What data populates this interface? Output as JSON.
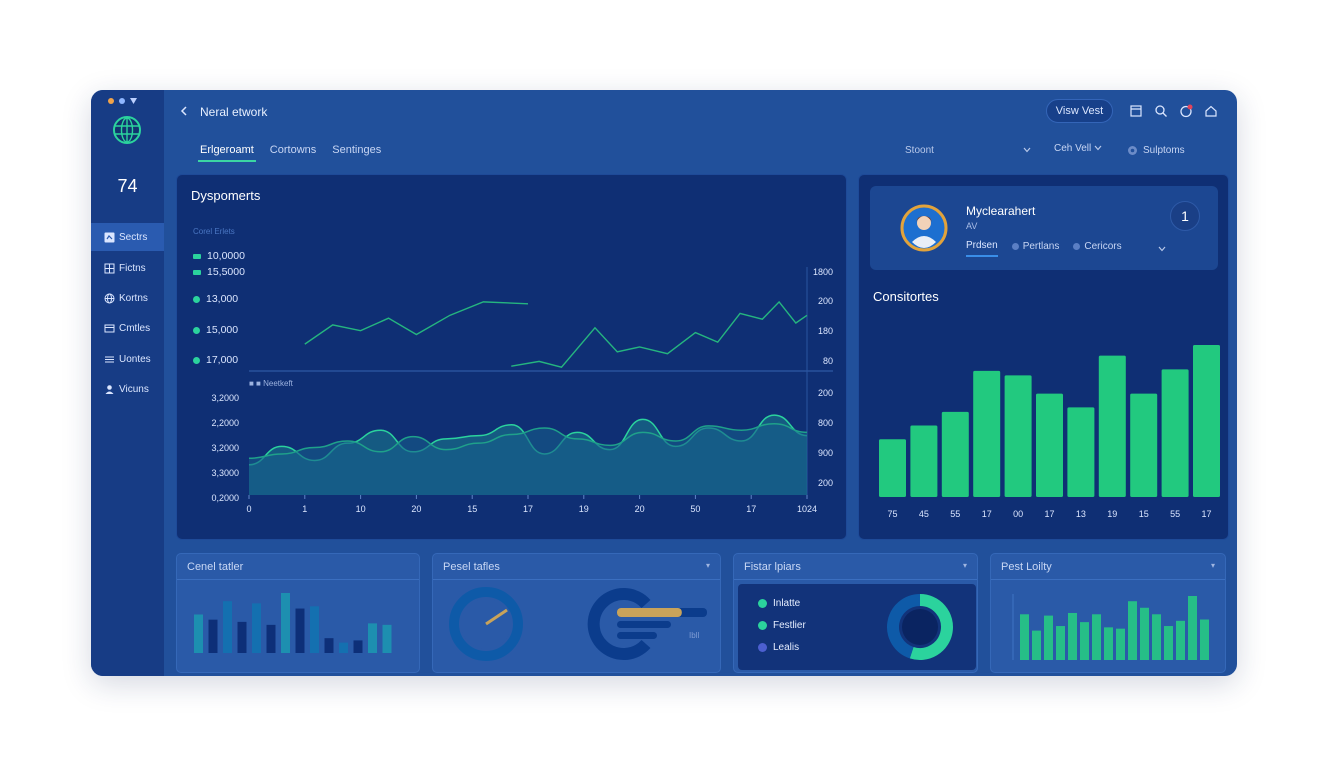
{
  "window": {
    "title": "Neral etwork",
    "view_button": "Visw Vest"
  },
  "icons": {
    "back": "chevron-left-icon",
    "calendar": "calendar-icon",
    "search": "search-icon",
    "notifications": "bell-badge-icon",
    "home": "home-icon",
    "logo": "globe-icon"
  },
  "colors": {
    "accent_green": "#2bd39d",
    "bg_window": "#21509b",
    "panel": "#0f2f74",
    "progress_gold": "#c9a35a"
  },
  "sidebar": {
    "count": "74",
    "items": [
      {
        "label": "Sectrs",
        "icon": "chart-icon"
      },
      {
        "label": "Fictns",
        "icon": "grid-icon"
      },
      {
        "label": "Kortns",
        "icon": "globe-icon"
      },
      {
        "label": "Cmtles",
        "icon": "folder-icon"
      },
      {
        "label": "Uontes",
        "icon": "list-icon"
      },
      {
        "label": "Vicuns",
        "icon": "user-icon"
      }
    ]
  },
  "tabs": [
    {
      "label": "Erlgeroamt"
    },
    {
      "label": "Cortowns"
    },
    {
      "label": "Sentinges"
    }
  ],
  "toolbar": {
    "search_placeholder": "Stoont",
    "filter_label": "Ceh Vell",
    "options_label": "Sulptoms"
  },
  "main_chart": {
    "title": "Dyspomerts",
    "legend_caption": "Corel Erlets",
    "legend_items": [
      "10,0000",
      "15,5000",
      "13,000",
      "15,000",
      "17,000"
    ],
    "lower_legend": "Neetkeft",
    "y_left_lower": [
      "3,2000",
      "2,2000",
      "3,2000",
      "3,3000",
      "0,2000"
    ],
    "y_right_upper": [
      "1800",
      "200",
      "180",
      "80"
    ],
    "y_right_lower": [
      "200",
      "800",
      "900",
      "200"
    ],
    "x_labels": [
      "0",
      "1",
      "10",
      "20",
      "15",
      "17",
      "19",
      "20",
      "50",
      "17",
      "1024"
    ]
  },
  "chart_data": [
    {
      "type": "line",
      "title": "Dyspomerts",
      "series": [
        {
          "name": "",
          "values": [
            [
              0.1,
              0.72
            ],
            [
              0.15,
              0.52
            ],
            [
              0.2,
              0.58
            ],
            [
              0.25,
              0.45
            ],
            [
              0.3,
              0.62
            ],
            [
              0.36,
              0.42
            ],
            [
              0.42,
              0.28
            ],
            [
              0.5,
              0.3
            ]
          ]
        },
        {
          "name": "",
          "values": [
            [
              0.47,
              0.95
            ],
            [
              0.52,
              0.9
            ],
            [
              0.56,
              0.96
            ],
            [
              0.62,
              0.55
            ],
            [
              0.66,
              0.8
            ],
            [
              0.7,
              0.75
            ],
            [
              0.75,
              0.82
            ],
            [
              0.8,
              0.6
            ],
            [
              0.84,
              0.7
            ],
            [
              0.88,
              0.4
            ],
            [
              0.92,
              0.46
            ],
            [
              0.95,
              0.28
            ],
            [
              0.98,
              0.5
            ],
            [
              1.0,
              0.42
            ]
          ]
        }
      ]
    },
    {
      "type": "area",
      "series": [
        {
          "name": "",
          "values": [
            0.72,
            0.55,
            0.68,
            0.52,
            0.4,
            0.6,
            0.48,
            0.45,
            0.35,
            0.62,
            0.42,
            0.58,
            0.3,
            0.55,
            0.38,
            0.5,
            0.26,
            0.45
          ]
        },
        {
          "name": "",
          "values": [
            0.66,
            0.62,
            0.56,
            0.5,
            0.6,
            0.46,
            0.58,
            0.52,
            0.44,
            0.38,
            0.48,
            0.54,
            0.42,
            0.5,
            0.36,
            0.4,
            0.34,
            0.42
          ]
        }
      ]
    },
    {
      "type": "bar",
      "title": "Consitortes",
      "categories": [
        "75",
        "45",
        "55",
        "17",
        "00",
        "17",
        "13",
        "19",
        "15",
        "55",
        "17"
      ],
      "values": [
        38,
        47,
        56,
        83,
        80,
        68,
        59,
        93,
        68,
        84,
        100
      ]
    },
    {
      "type": "bar",
      "title": "Cenel tatler",
      "values": [
        52,
        45,
        70,
        42,
        67,
        38,
        81,
        60,
        63,
        20,
        14,
        17,
        40,
        38
      ]
    },
    {
      "type": "pie",
      "title": "Fistar lpiars",
      "values": [
        55,
        45
      ]
    },
    {
      "type": "bar",
      "title": "Pest Loilty",
      "values": [
        70,
        45,
        68,
        52,
        72,
        58,
        70,
        50,
        48,
        90,
        80,
        70,
        52,
        60,
        98,
        62
      ]
    }
  ],
  "profile": {
    "name": "Myclearahert",
    "sub": "AV",
    "badge": "1",
    "tabs": [
      {
        "label": "Prdsen"
      },
      {
        "label": "Pertlans"
      },
      {
        "label": "Cericors"
      }
    ]
  },
  "mini_panels": {
    "one": {
      "title": "Cenel tatler"
    },
    "two": {
      "title": "Pesel tafles",
      "gauge_label": "Ibll",
      "progress": 0.72
    },
    "three": {
      "title": "Fistar lpiars",
      "items": [
        {
          "label": "Inlatte",
          "color": "#2bd39d"
        },
        {
          "label": "Festlier",
          "color": "#2bd39d"
        },
        {
          "label": "Lealis",
          "color": "#4c5fd0"
        }
      ]
    },
    "four": {
      "title": "Pest Loilty"
    }
  }
}
